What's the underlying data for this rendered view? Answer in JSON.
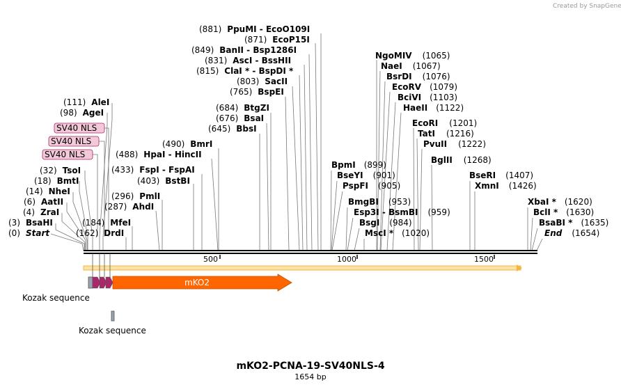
{
  "watermark": "Created by SnapGene",
  "title": "mKO2-PCNA-19-SV40NLS-4",
  "length_label": "1654 bp",
  "ruler_ticks": [
    "500",
    "1000",
    "1500"
  ],
  "colors": {
    "backbone": "#000000",
    "orange_bar": "#f3b640",
    "mko2": "#ff6600",
    "nls": "#a8286a",
    "kozak": "#9aa3b0",
    "nls_label_bg": "#f3c8d8"
  },
  "left_sites": [
    {
      "pos": "(111)",
      "name": "AleI"
    },
    {
      "pos": "(98)",
      "name": "AgeI"
    },
    {
      "pos": "(32)",
      "name": "TsoI"
    },
    {
      "pos": "(18)",
      "name": "BmtI"
    },
    {
      "pos": "(14)",
      "name": "NheI"
    },
    {
      "pos": "(6)",
      "name": "AatII"
    },
    {
      "pos": "(4)",
      "name": "ZraI"
    },
    {
      "pos": "(3)",
      "name": "BsaHI"
    },
    {
      "pos": "(0)",
      "name": "Start"
    }
  ],
  "nls_labels": [
    "SV40 NLS",
    "SV40 NLS",
    "SV40 NLS"
  ],
  "mid_sites": [
    {
      "pos": "(490)",
      "name": "BmrI"
    },
    {
      "pos": "(488)",
      "name": "HpaI  - HincII"
    },
    {
      "pos": "(433)",
      "name": "FspI  - FspAI"
    },
    {
      "pos": "(403)",
      "name": "BstBI"
    },
    {
      "pos": "(296)",
      "name": "PmlI"
    },
    {
      "pos": "(287)",
      "name": "AhdI"
    },
    {
      "pos": "(184)",
      "name": "MfeI"
    },
    {
      "pos": "(162)",
      "name": "DrdI"
    }
  ],
  "top_sites": [
    {
      "pos": "(881)",
      "name": "PpuMI  - EcoO109I"
    },
    {
      "pos": "(871)",
      "name": "EcoP15I"
    },
    {
      "pos": "(849)",
      "name": "BanII  - Bsp1286I"
    },
    {
      "pos": "(831)",
      "name": "AscI  - BssHII"
    },
    {
      "pos": "(815)",
      "name": "ClaI *  - BspDI *"
    },
    {
      "pos": "(803)",
      "name": "SacII"
    },
    {
      "pos": "(765)",
      "name": "BspEI"
    },
    {
      "pos": "(684)",
      "name": "BtgZI"
    },
    {
      "pos": "(676)",
      "name": "BsaI"
    },
    {
      "pos": "(645)",
      "name": "BbsI"
    }
  ],
  "right_sites": [
    {
      "pos": "(1065)",
      "name": "NgoMIV"
    },
    {
      "pos": "(1067)",
      "name": "NaeI"
    },
    {
      "pos": "(1076)",
      "name": "BsrDI"
    },
    {
      "pos": "(1079)",
      "name": "EcoRV"
    },
    {
      "pos": "(1103)",
      "name": "BciVI"
    },
    {
      "pos": "(1122)",
      "name": "HaeII"
    },
    {
      "pos": "(1201)",
      "name": "EcoRI"
    },
    {
      "pos": "(1216)",
      "name": "TatI"
    },
    {
      "pos": "(1222)",
      "name": "PvuII"
    },
    {
      "pos": "(1268)",
      "name": "BglII"
    },
    {
      "pos": "(899)",
      "name": "BpmI"
    },
    {
      "pos": "(901)",
      "name": "BseYI"
    },
    {
      "pos": "(905)",
      "name": "PspFI"
    },
    {
      "pos": "(953)",
      "name": "BmgBI"
    },
    {
      "pos": "(959)",
      "name": "Esp3I  - BsmBI"
    },
    {
      "pos": "(984)",
      "name": "BsgI"
    },
    {
      "pos": "(1020)",
      "name": "MscI *"
    },
    {
      "pos": "(1407)",
      "name": "BseRI"
    },
    {
      "pos": "(1426)",
      "name": "XmnI"
    },
    {
      "pos": "(1620)",
      "name": "XbaI *"
    },
    {
      "pos": "(1630)",
      "name": "BclI *"
    },
    {
      "pos": "(1635)",
      "name": "BsaBI *"
    },
    {
      "pos": "(1654)",
      "name": "End"
    }
  ],
  "features": {
    "mko2": "mKO2",
    "kozak1": "Kozak sequence",
    "kozak2": "Kozak sequence"
  }
}
